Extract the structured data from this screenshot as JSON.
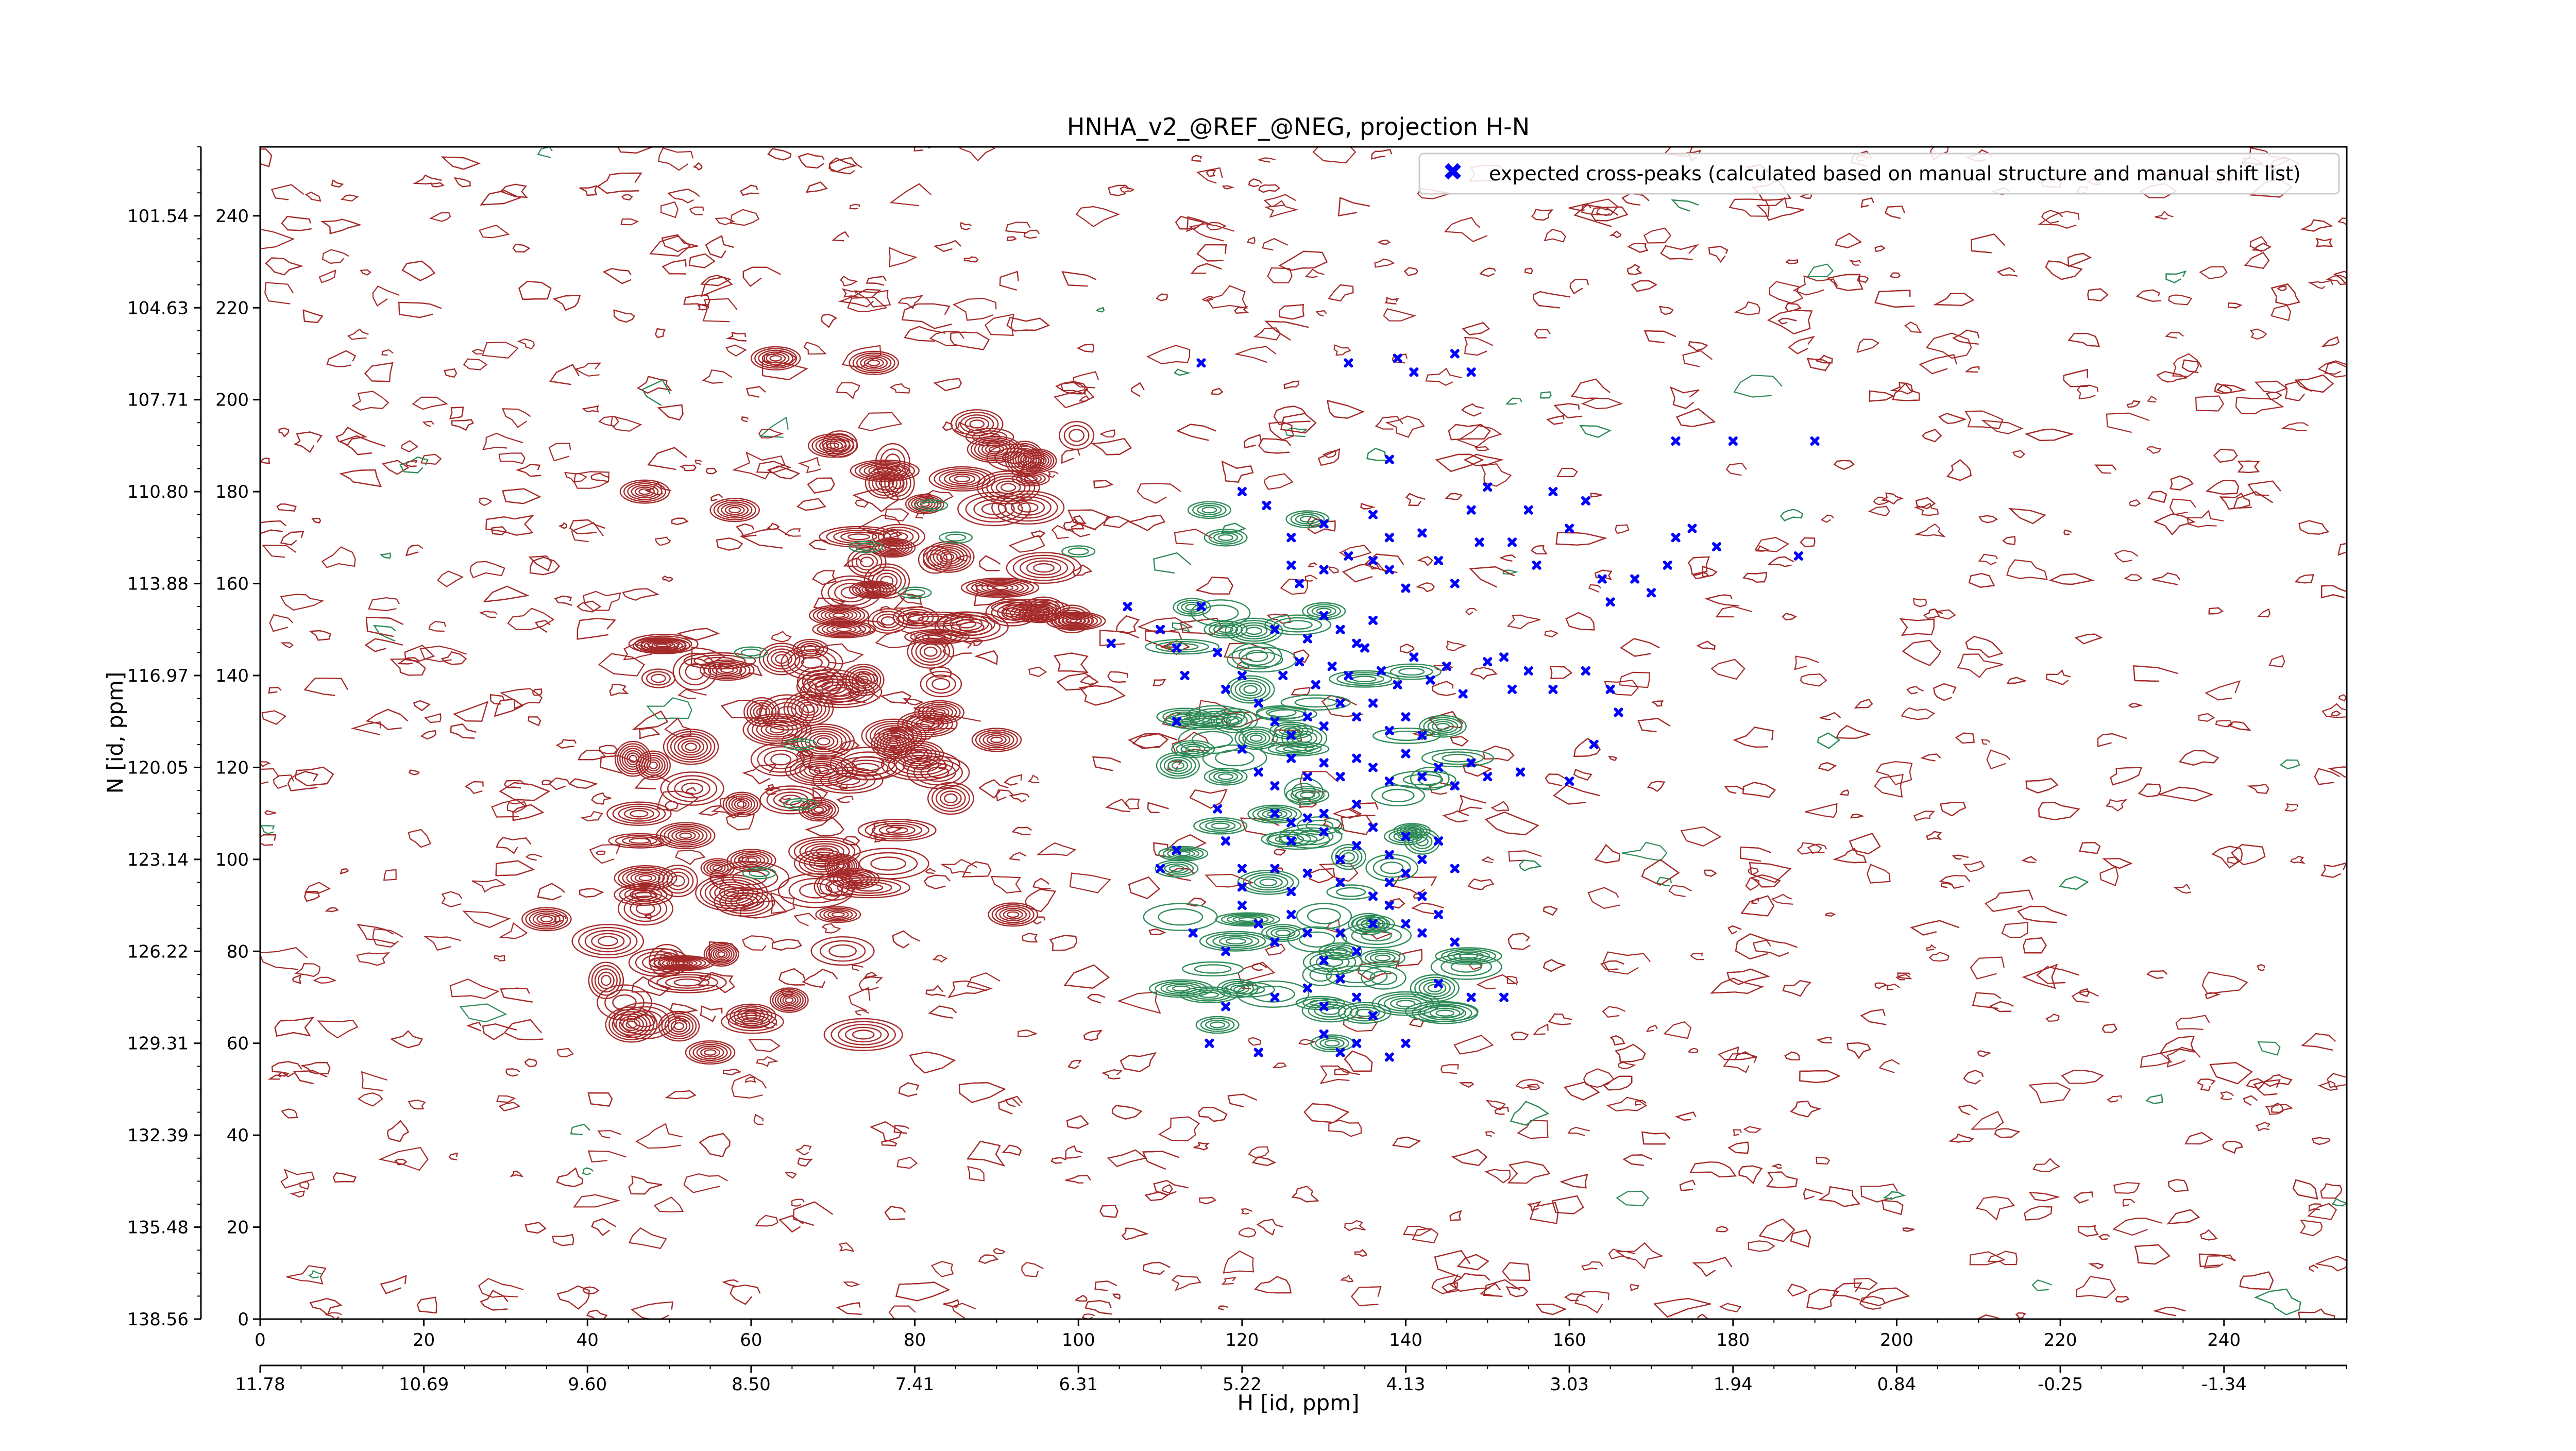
{
  "chart_data": {
    "type": "scatter",
    "title": "HNHA_v2_@REF_@NEG, projection H-N",
    "xlabel": "H [id, ppm]",
    "ylabel": "N [id, ppm]",
    "xlim": [
      0,
      255
    ],
    "ylim": [
      0,
      255
    ],
    "grid": false,
    "legend_position": "top-right",
    "x_ticks": [
      0,
      20,
      40,
      60,
      80,
      100,
      120,
      140,
      160,
      180,
      200,
      220,
      240
    ],
    "y_ticks": [
      0,
      20,
      40,
      60,
      80,
      100,
      120,
      140,
      160,
      180,
      200,
      220,
      240
    ],
    "x_ppm_ticks": [
      {
        "pos": 0,
        "label": "11.78"
      },
      {
        "pos": 20,
        "label": "10.69"
      },
      {
        "pos": 40,
        "label": "9.60"
      },
      {
        "pos": 60,
        "label": "8.50"
      },
      {
        "pos": 80,
        "label": "7.41"
      },
      {
        "pos": 100,
        "label": "6.31"
      },
      {
        "pos": 120,
        "label": "5.22"
      },
      {
        "pos": 140,
        "label": "4.13"
      },
      {
        "pos": 160,
        "label": "3.03"
      },
      {
        "pos": 180,
        "label": "1.94"
      },
      {
        "pos": 200,
        "label": "0.84"
      },
      {
        "pos": 220,
        "label": "-0.25"
      },
      {
        "pos": 240,
        "label": "-1.34"
      }
    ],
    "y_ppm_ticks": [
      {
        "pos": 0,
        "label": "138.56"
      },
      {
        "pos": 20,
        "label": "135.48"
      },
      {
        "pos": 40,
        "label": "132.39"
      },
      {
        "pos": 60,
        "label": "129.31"
      },
      {
        "pos": 80,
        "label": "126.22"
      },
      {
        "pos": 100,
        "label": "123.14"
      },
      {
        "pos": 120,
        "label": "120.05"
      },
      {
        "pos": 140,
        "label": "116.97"
      },
      {
        "pos": 160,
        "label": "113.88"
      },
      {
        "pos": 180,
        "label": "110.80"
      },
      {
        "pos": 200,
        "label": "107.71"
      },
      {
        "pos": 220,
        "label": "104.63"
      },
      {
        "pos": 240,
        "label": "101.54"
      }
    ],
    "colors": {
      "positive_contours": "#a52a2a",
      "negative_contours": "#2e8b57",
      "markers": "#0000ff"
    },
    "series": [
      {
        "name": "expected cross-peaks (calculated based on manual structure and manual shift list)",
        "marker": "X",
        "color": "#0000ff",
        "points": [
          [
            115,
            208
          ],
          [
            133,
            208
          ],
          [
            139,
            209
          ],
          [
            141,
            206
          ],
          [
            146,
            210
          ],
          [
            148,
            206
          ],
          [
            138,
            187
          ],
          [
            120,
            180
          ],
          [
            123,
            177
          ],
          [
            126,
            170
          ],
          [
            130,
            173
          ],
          [
            126,
            164
          ],
          [
            130,
            163
          ],
          [
            127,
            160
          ],
          [
            133,
            166
          ],
          [
            136,
            165
          ],
          [
            138,
            163
          ],
          [
            140,
            159
          ],
          [
            136,
            175
          ],
          [
            138,
            170
          ],
          [
            142,
            171
          ],
          [
            144,
            165
          ],
          [
            146,
            160
          ],
          [
            148,
            176
          ],
          [
            149,
            169
          ],
          [
            150,
            181
          ],
          [
            153,
            169
          ],
          [
            155,
            176
          ],
          [
            158,
            180
          ],
          [
            156,
            164
          ],
          [
            160,
            172
          ],
          [
            162,
            178
          ],
          [
            164,
            161
          ],
          [
            165,
            156
          ],
          [
            168,
            161
          ],
          [
            170,
            158
          ],
          [
            172,
            164
          ],
          [
            173,
            170
          ],
          [
            175,
            172
          ],
          [
            178,
            168
          ],
          [
            173,
            191
          ],
          [
            180,
            191
          ],
          [
            188,
            166
          ],
          [
            190,
            191
          ],
          [
            152,
            144
          ],
          [
            150,
            143
          ],
          [
            153,
            137
          ],
          [
            155,
            141
          ],
          [
            158,
            137
          ],
          [
            162,
            141
          ],
          [
            165,
            137
          ],
          [
            166,
            132
          ],
          [
            163,
            125
          ],
          [
            160,
            117
          ],
          [
            112,
            130
          ],
          [
            104,
            147
          ],
          [
            106,
            155
          ],
          [
            110,
            150
          ],
          [
            112,
            146
          ],
          [
            113,
            140
          ],
          [
            115,
            155
          ],
          [
            117,
            145
          ],
          [
            118,
            137
          ],
          [
            120,
            140
          ],
          [
            122,
            134
          ],
          [
            124,
            130
          ],
          [
            126,
            127
          ],
          [
            128,
            131
          ],
          [
            130,
            129
          ],
          [
            132,
            134
          ],
          [
            134,
            131
          ],
          [
            136,
            134
          ],
          [
            138,
            128
          ],
          [
            140,
            131
          ],
          [
            142,
            127
          ],
          [
            120,
            124
          ],
          [
            122,
            119
          ],
          [
            124,
            116
          ],
          [
            126,
            122
          ],
          [
            128,
            118
          ],
          [
            130,
            121
          ],
          [
            132,
            118
          ],
          [
            134,
            122
          ],
          [
            136,
            120
          ],
          [
            138,
            117
          ],
          [
            140,
            123
          ],
          [
            142,
            118
          ],
          [
            144,
            120
          ],
          [
            146,
            116
          ],
          [
            148,
            121
          ],
          [
            150,
            118
          ],
          [
            154,
            119
          ],
          [
            125,
            140
          ],
          [
            127,
            143
          ],
          [
            129,
            138
          ],
          [
            131,
            142
          ],
          [
            133,
            140
          ],
          [
            135,
            146
          ],
          [
            137,
            141
          ],
          [
            139,
            138
          ],
          [
            141,
            144
          ],
          [
            143,
            139
          ],
          [
            145,
            142
          ],
          [
            147,
            136
          ],
          [
            124,
            150
          ],
          [
            128,
            148
          ],
          [
            130,
            153
          ],
          [
            132,
            150
          ],
          [
            134,
            147
          ],
          [
            136,
            152
          ],
          [
            117,
            111
          ],
          [
            118,
            104
          ],
          [
            120,
            98
          ],
          [
            124,
            110
          ],
          [
            126,
            104
          ],
          [
            128,
            109
          ],
          [
            130,
            106
          ],
          [
            132,
            100
          ],
          [
            134,
            103
          ],
          [
            136,
            107
          ],
          [
            138,
            101
          ],
          [
            140,
            105
          ],
          [
            142,
            100
          ],
          [
            144,
            104
          ],
          [
            146,
            98
          ],
          [
            114,
            84
          ],
          [
            118,
            80
          ],
          [
            120,
            90
          ],
          [
            122,
            86
          ],
          [
            124,
            82
          ],
          [
            126,
            88
          ],
          [
            128,
            84
          ],
          [
            130,
            78
          ],
          [
            132,
            84
          ],
          [
            134,
            80
          ],
          [
            136,
            86
          ],
          [
            138,
            90
          ],
          [
            140,
            86
          ],
          [
            142,
            84
          ],
          [
            144,
            88
          ],
          [
            146,
            82
          ],
          [
            118,
            68
          ],
          [
            124,
            70
          ],
          [
            128,
            72
          ],
          [
            130,
            68
          ],
          [
            132,
            74
          ],
          [
            134,
            70
          ],
          [
            136,
            66
          ],
          [
            144,
            73
          ],
          [
            148,
            70
          ],
          [
            152,
            70
          ],
          [
            130,
            62
          ],
          [
            132,
            58
          ],
          [
            134,
            60
          ],
          [
            138,
            57
          ],
          [
            140,
            60
          ],
          [
            122,
            58
          ],
          [
            116,
            60
          ],
          [
            126,
            108
          ],
          [
            130,
            110
          ],
          [
            134,
            112
          ],
          [
            138,
            95
          ],
          [
            140,
            97
          ],
          [
            142,
            92
          ],
          [
            136,
            92
          ],
          [
            132,
            95
          ],
          [
            128,
            97
          ],
          [
            126,
            93
          ],
          [
            124,
            98
          ],
          [
            120,
            94
          ],
          [
            110,
            98
          ],
          [
            112,
            102
          ]
        ]
      }
    ]
  }
}
